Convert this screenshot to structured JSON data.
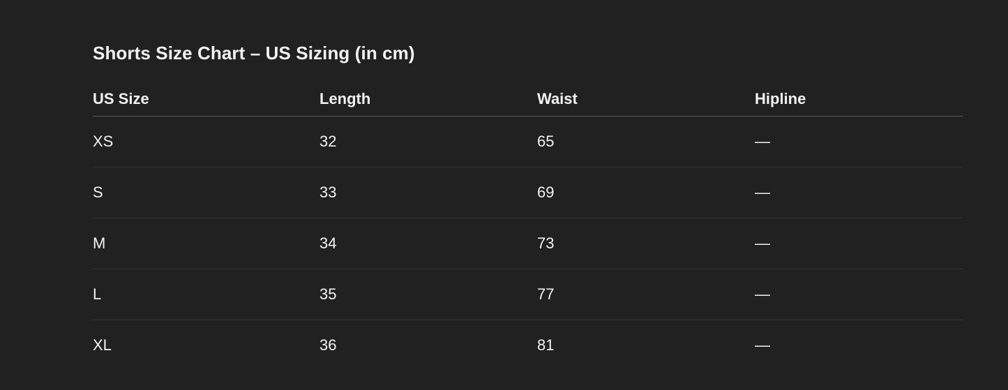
{
  "title": "Shorts Size Chart – US Sizing (in cm)",
  "columns": [
    "US Size",
    "Length",
    "Waist",
    "Hipline"
  ],
  "rows": [
    [
      "XS",
      "32",
      "65",
      "—"
    ],
    [
      "S",
      "33",
      "69",
      "—"
    ],
    [
      "M",
      "34",
      "73",
      "—"
    ],
    [
      "L",
      "35",
      "77",
      "—"
    ],
    [
      "XL",
      "36",
      "81",
      "—"
    ]
  ],
  "colors": {
    "background": "#212121",
    "text": "#f2f2f2",
    "header_rule": "#5a5a5a",
    "row_rule": "#363636"
  }
}
